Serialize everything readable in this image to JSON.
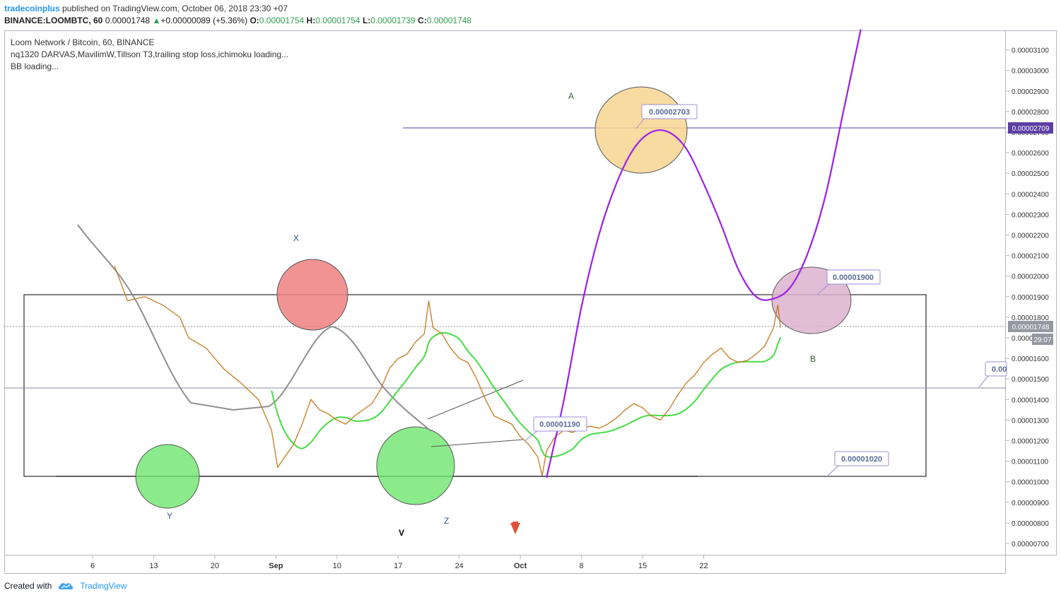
{
  "header": {
    "author": "tradecoinplus",
    "published_text": "published on TradingView.com, October 06, 2018 23:30 +07"
  },
  "ohlc": {
    "symbol": "BINANCE:LOOMBTC, 60",
    "last": "0.00001748",
    "change_arrow": "▲",
    "change": "+0.00000089 (+5.36%)",
    "o_label": "O:",
    "o": "0.00001754",
    "h_label": "H:",
    "h": "0.00001754",
    "l_label": "L:",
    "l": "0.00001739",
    "c_label": "C:",
    "c": "0.00001748"
  },
  "legend": {
    "title": "Loom Network / Bitcoin, 60, BINANCE",
    "indicators": "nq1320 DARVAS,MavilimW,Tillson T3,trailing stop loss,ichimoku loading...",
    "bb": "BB loading..."
  },
  "footer": {
    "created_with": "Created with",
    "brand": "TradingView",
    "logo_icon": "tradingview-cloud-icon"
  },
  "colors": {
    "price_up": "#2e9e4f",
    "projection": "#9b1fe8",
    "callout_border": "#9c8bd6",
    "marker_price_bg": "#5b3fa3",
    "axis": "#b2b5be"
  },
  "chart_data": {
    "type": "line",
    "symbol": "LOOMBTC",
    "interval": "60",
    "exchange": "BINANCE",
    "x_ticks": [
      "6",
      "13",
      "20",
      "Sep",
      "10",
      "17",
      "24",
      "Oct",
      "8",
      "15",
      "22"
    ],
    "y_ticks": [
      "0.00000700",
      "0.00000800",
      "0.00000900",
      "0.00001000",
      "0.00001100",
      "0.00001200",
      "0.00001300",
      "0.00001400",
      "0.00001500",
      "0.00001600",
      "0.00001700",
      "0.00001800",
      "0.00001900",
      "0.00002000",
      "0.00002100",
      "0.00002200",
      "0.00002300",
      "0.00002400",
      "0.00002500",
      "0.00002600",
      "0.00002700",
      "0.00002800",
      "0.00002900",
      "0.00003000",
      "0.00003100"
    ],
    "ylim": [
      6.5e-06,
      3.18e-05
    ],
    "last_price_label": "0.00001748",
    "countdown": "29:07",
    "marked_price_label": "0.00002709",
    "wave_labels": [
      "A",
      "X",
      "B",
      "Y",
      "Z",
      "V"
    ],
    "price_callouts": [
      "0.00002703",
      "0.00001900",
      "0.00001190",
      "0.00001020",
      "0.00"
    ],
    "price_series": [
      [
        2.5,
        2.05e-05
      ],
      [
        4,
        1.88e-05
      ],
      [
        6,
        1.9e-05
      ],
      [
        8,
        1.86e-05
      ],
      [
        10,
        1.8e-05
      ],
      [
        11,
        1.7e-05
      ],
      [
        13,
        1.65e-05
      ],
      [
        15,
        1.55e-05
      ],
      [
        17,
        1.48e-05
      ],
      [
        19,
        1.4e-05
      ],
      [
        20.5,
        1.25e-05
      ],
      [
        21.2,
        1.07e-05
      ],
      [
        22,
        1.12e-05
      ],
      [
        23,
        1.18e-05
      ],
      [
        24,
        1.28e-05
      ],
      [
        25,
        1.4e-05
      ],
      [
        26,
        1.35e-05
      ],
      [
        27,
        1.33e-05
      ],
      [
        28,
        1.3e-05
      ],
      [
        29,
        1.28e-05
      ],
      [
        30,
        1.32e-05
      ],
      [
        31,
        1.35e-05
      ],
      [
        32,
        1.38e-05
      ],
      [
        33,
        1.45e-05
      ],
      [
        34,
        1.55e-05
      ],
      [
        35,
        1.6e-05
      ],
      [
        36,
        1.62e-05
      ],
      [
        37,
        1.68e-05
      ],
      [
        38,
        1.72e-05
      ],
      [
        38.5,
        1.88e-05
      ],
      [
        39,
        1.75e-05
      ],
      [
        40,
        1.72e-05
      ],
      [
        41,
        1.65e-05
      ],
      [
        42,
        1.6e-05
      ],
      [
        43,
        1.58e-05
      ],
      [
        44,
        1.5e-05
      ],
      [
        45,
        1.4e-05
      ],
      [
        46,
        1.32e-05
      ],
      [
        47,
        1.3e-05
      ],
      [
        48,
        1.28e-05
      ],
      [
        49,
        1.22e-05
      ],
      [
        50,
        1.18e-05
      ],
      [
        51,
        1.12e-05
      ],
      [
        51.5,
        1.03e-05
      ],
      [
        52,
        1.15e-05
      ],
      [
        53,
        1.22e-05
      ],
      [
        54,
        1.25e-05
      ],
      [
        55,
        1.24e-05
      ],
      [
        56,
        1.26e-05
      ],
      [
        57,
        1.27e-05
      ],
      [
        58,
        1.26e-05
      ],
      [
        59,
        1.28e-05
      ],
      [
        60,
        1.31e-05
      ],
      [
        61,
        1.35e-05
      ],
      [
        62,
        1.38e-05
      ],
      [
        63,
        1.36e-05
      ],
      [
        64,
        1.32e-05
      ],
      [
        65,
        1.3e-05
      ],
      [
        66,
        1.35e-05
      ],
      [
        67,
        1.42e-05
      ],
      [
        68,
        1.48e-05
      ],
      [
        69,
        1.52e-05
      ],
      [
        70,
        1.58e-05
      ],
      [
        71,
        1.62e-05
      ],
      [
        72,
        1.65e-05
      ],
      [
        73,
        1.6e-05
      ],
      [
        74,
        1.58e-05
      ],
      [
        75,
        1.59e-05
      ],
      [
        76,
        1.62e-05
      ],
      [
        77,
        1.66e-05
      ],
      [
        78,
        1.75e-05
      ],
      [
        78.5,
        1.86e-05
      ],
      [
        78.8,
        1.75e-05
      ]
    ],
    "projection_path": [
      [
        52,
        1.02e-05
      ],
      [
        54,
        1.4e-05
      ],
      [
        56,
        1.85e-05
      ],
      [
        58,
        2.2e-05
      ],
      [
        60,
        2.45e-05
      ],
      [
        62,
        2.62e-05
      ],
      [
        64,
        2.7e-05
      ],
      [
        66,
        2.7e-05
      ],
      [
        68,
        2.62e-05
      ],
      [
        70,
        2.45e-05
      ],
      [
        72,
        2.25e-05
      ],
      [
        74,
        2.03e-05
      ],
      [
        76,
        1.9e-05
      ],
      [
        78,
        1.89e-05
      ],
      [
        80,
        1.95e-05
      ],
      [
        82,
        2.12e-05
      ],
      [
        84,
        2.4e-05
      ],
      [
        86,
        2.8e-05
      ],
      [
        88,
        3.2e-05
      ]
    ]
  }
}
